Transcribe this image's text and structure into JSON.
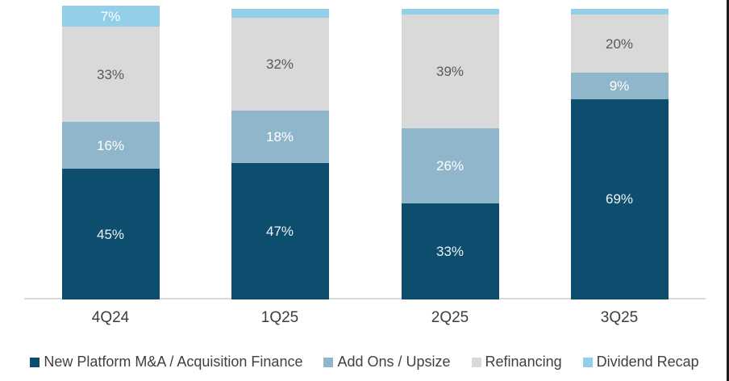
{
  "chart_data": {
    "type": "bar",
    "subtype": "stacked-percent",
    "title": "",
    "xlabel": "",
    "ylabel": "",
    "ylim": [
      0,
      101
    ],
    "grid": "off",
    "legend_position": "bottom",
    "axis_line_color": "#d9d9d9",
    "tick_label_color": "#3d3d3d",
    "legend_text_color": "#404040",
    "categories": [
      "4Q24",
      "1Q25",
      "2Q25",
      "3Q25"
    ],
    "series": [
      {
        "name": "New Platform M&A / Acquisition Finance",
        "color": "#0d4e6e",
        "label_color": "#eef3f6",
        "values": [
          45,
          47,
          33,
          69
        ],
        "labels": [
          "45%",
          "47%",
          "33%",
          "69%"
        ]
      },
      {
        "name": "Add Ons / Upsize",
        "color": "#8fb6ca",
        "label_color": "#ffffff",
        "values": [
          16,
          18,
          26,
          9
        ],
        "labels": [
          "16%",
          "18%",
          "26%",
          "9%"
        ]
      },
      {
        "name": "Refinancing",
        "color": "#d9d9d9",
        "label_color": "#595959",
        "values": [
          33,
          32,
          39,
          20
        ],
        "labels": [
          "33%",
          "32%",
          "39%",
          "20%"
        ]
      },
      {
        "name": "Dividend Recap",
        "color": "#93cfe8",
        "label_color": "#ffffff",
        "values": [
          7,
          3,
          2,
          2
        ],
        "labels": [
          "7%",
          "",
          "",
          ""
        ]
      }
    ]
  }
}
